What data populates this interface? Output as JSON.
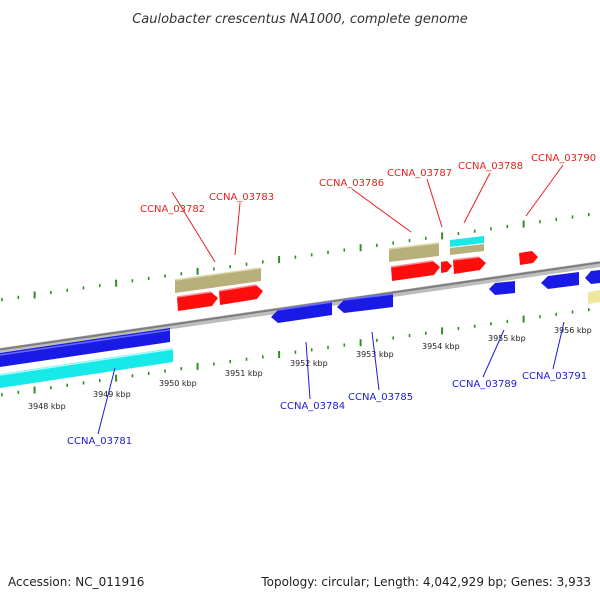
{
  "title": "Caulobacter crescentus NA1000, complete genome",
  "footer": {
    "accession": "Accession: NC_011916",
    "topology": "Topology: circular; Length: 4,042,929 bp; Genes: 3,933"
  },
  "colors": {
    "plus_label": "#e8211d",
    "minus_label": "#1b1bd6",
    "red_gene": "#ff0d0d",
    "blue_gene": "#1a1ae6",
    "khaki_gene": "#b8b07a",
    "cyan_gene": "#17e8e8",
    "pale_gene": "#eee7a0",
    "backbone": "#8a8a8a",
    "tick": "#2f8f22"
  },
  "scale_labels": [
    "3948 kbp",
    "3949 kbp",
    "3950 kbp",
    "3951 kbp",
    "3952 kbp",
    "3953 kbp",
    "3954 kbp",
    "3955 kbp",
    "3956 kbp"
  ],
  "plus_strand_labels": [
    "CCNA_03782",
    "CCNA_03783",
    "CCNA_03786",
    "CCNA_03787",
    "CCNA_03788",
    "CCNA_03790"
  ],
  "minus_strand_labels": [
    "CCNA_03781",
    "CCNA_03784",
    "CCNA_03785",
    "CCNA_03789",
    "CCNA_03791"
  ]
}
